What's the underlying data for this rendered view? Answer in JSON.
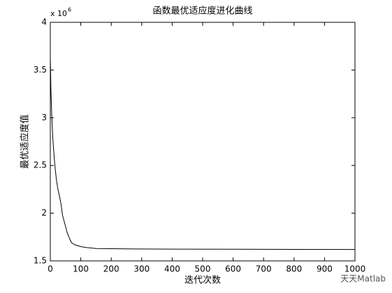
{
  "chart_data": {
    "type": "line",
    "title": "函数最优适应度进化曲线",
    "x_label": "迭代次数",
    "y_label": "最优适应度值",
    "y_multiplier": "x 10",
    "y_multiplier_exp": "6",
    "watermark": "天天Matlab",
    "x": [
      0,
      2,
      5,
      8,
      10,
      15,
      20,
      25,
      30,
      35,
      40,
      45,
      50,
      55,
      60,
      65,
      70,
      80,
      90,
      100,
      120,
      150,
      200,
      280,
      400,
      600,
      800,
      1000
    ],
    "series": [
      {
        "color": "#000000",
        "values": [
          3.63,
          3.3,
          3.0,
          2.8,
          2.7,
          2.5,
          2.35,
          2.25,
          2.18,
          2.1,
          1.98,
          1.92,
          1.86,
          1.8,
          1.76,
          1.72,
          1.69,
          1.67,
          1.66,
          1.65,
          1.64,
          1.63,
          1.628,
          1.625,
          1.623,
          1.622,
          1.621,
          1.62
        ]
      }
    ],
    "xlim": [
      0,
      1000
    ],
    "ylim": [
      1.5,
      4
    ],
    "xticks": [
      0,
      100,
      200,
      300,
      400,
      500,
      600,
      700,
      800,
      900,
      1000
    ],
    "yticks": [
      1.5,
      2,
      2.5,
      3,
      3.5,
      4
    ],
    "grid": false
  }
}
